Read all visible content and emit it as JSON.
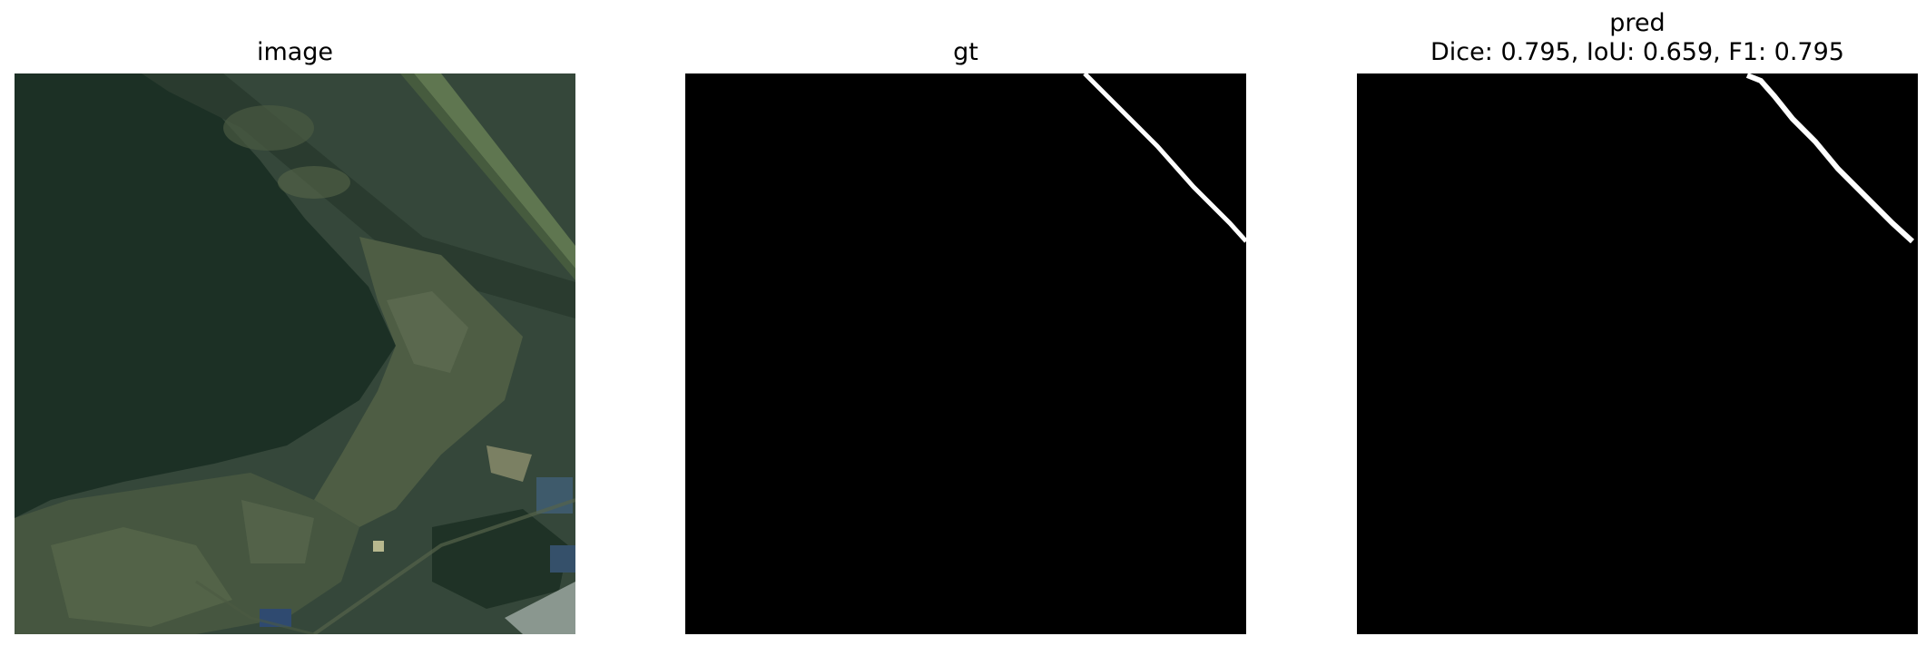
{
  "panels": [
    {
      "title": "image",
      "kind": "satellite-photo"
    },
    {
      "title": "gt",
      "kind": "segmentation-mask",
      "background": "#000000",
      "mask_color": "#ffffff"
    },
    {
      "title": "pred",
      "subtitle": "Dice: 0.795, IoU: 0.659, F1: 0.795",
      "kind": "segmentation-mask",
      "background": "#000000",
      "mask_color": "#ffffff"
    }
  ],
  "metrics": {
    "dice": 0.795,
    "iou": 0.659,
    "f1": 0.795
  }
}
